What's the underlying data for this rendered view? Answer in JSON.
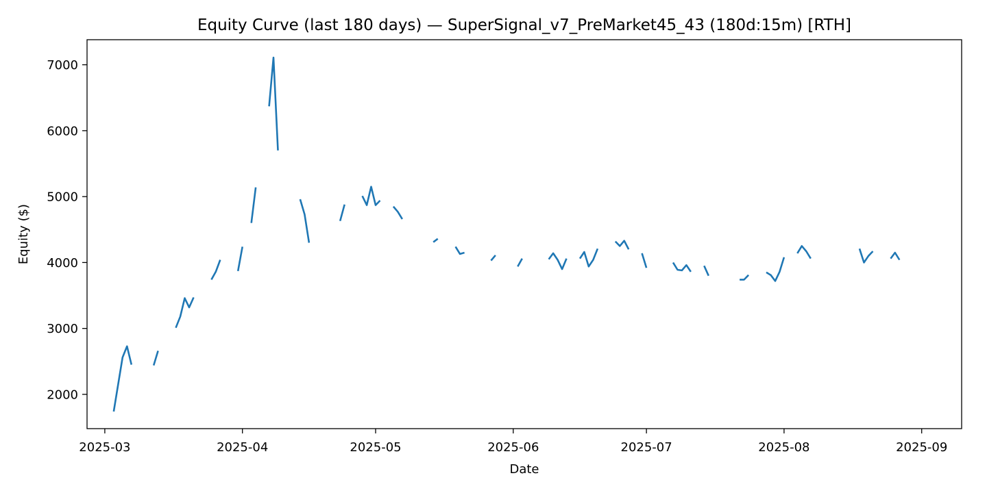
{
  "chart_data": {
    "type": "line",
    "title": "Equity Curve (last 180 days) — SuperSignal_v7_PreMarket45_43 (180d:15m) [RTH]",
    "xlabel": "Date",
    "ylabel": "Equity ($)",
    "x_axis_type": "date",
    "xlim": [
      "2025-02-25",
      "2025-09-10"
    ],
    "ylim": [
      1480,
      7380
    ],
    "xticks": [
      "2025-03-01",
      "2025-04-01",
      "2025-05-01",
      "2025-06-01",
      "2025-07-01",
      "2025-08-01",
      "2025-09-01"
    ],
    "xtick_labels": [
      "2025-03",
      "2025-04",
      "2025-05",
      "2025-06",
      "2025-07",
      "2025-08",
      "2025-09"
    ],
    "yticks": [
      2000,
      3000,
      4000,
      5000,
      6000,
      7000
    ],
    "ytick_labels": [
      "2000",
      "3000",
      "4000",
      "5000",
      "6000",
      "7000"
    ],
    "grid": false,
    "legend": "none",
    "series": [
      {
        "color": "#1f77b4",
        "segments": [
          [
            [
              "2025-03-03",
              1740
            ],
            [
              "2025-03-05",
              2560
            ],
            [
              "2025-03-06",
              2730
            ],
            [
              "2025-03-07",
              2450
            ]
          ],
          [
            [
              "2025-03-12",
              2440
            ],
            [
              "2025-03-13",
              2660
            ]
          ],
          [
            [
              "2025-03-17",
              3010
            ],
            [
              "2025-03-18",
              3180
            ],
            [
              "2025-03-19",
              3460
            ],
            [
              "2025-03-20",
              3320
            ],
            [
              "2025-03-21",
              3470
            ]
          ],
          [
            [
              "2025-03-25",
              3740
            ],
            [
              "2025-03-26",
              3860
            ],
            [
              "2025-03-27",
              4040
            ]
          ],
          [
            [
              "2025-03-31",
              3870
            ],
            [
              "2025-04-01",
              4240
            ]
          ],
          [
            [
              "2025-04-03",
              4600
            ],
            [
              "2025-04-04",
              5140
            ]
          ],
          [
            [
              "2025-04-07",
              6370
            ],
            [
              "2025-04-08",
              7110
            ],
            [
              "2025-04-09",
              5700
            ]
          ],
          [
            [
              "2025-04-14",
              4960
            ],
            [
              "2025-04-15",
              4730
            ],
            [
              "2025-04-16",
              4300
            ]
          ],
          [
            [
              "2025-04-23",
              4630
            ],
            [
              "2025-04-24",
              4880
            ]
          ],
          [
            [
              "2025-04-28",
              5010
            ],
            [
              "2025-04-29",
              4870
            ],
            [
              "2025-04-30",
              5150
            ],
            [
              "2025-05-01",
              4870
            ],
            [
              "2025-05-02",
              4940
            ]
          ],
          [
            [
              "2025-05-05",
              4850
            ],
            [
              "2025-05-06",
              4770
            ],
            [
              "2025-05-07",
              4660
            ]
          ],
          [
            [
              "2025-05-14",
              4310
            ],
            [
              "2025-05-15",
              4360
            ]
          ],
          [
            [
              "2025-05-19",
              4240
            ],
            [
              "2025-05-20",
              4130
            ],
            [
              "2025-05-21",
              4150
            ]
          ],
          [
            [
              "2025-05-27",
              4030
            ],
            [
              "2025-05-28",
              4110
            ]
          ],
          [
            [
              "2025-06-02",
              3940
            ],
            [
              "2025-06-03",
              4060
            ]
          ],
          [
            [
              "2025-06-09",
              4050
            ],
            [
              "2025-06-10",
              4140
            ],
            [
              "2025-06-11",
              4040
            ],
            [
              "2025-06-12",
              3900
            ],
            [
              "2025-06-13",
              4060
            ]
          ],
          [
            [
              "2025-06-16",
              4060
            ],
            [
              "2025-06-17",
              4160
            ],
            [
              "2025-06-18",
              3940
            ],
            [
              "2025-06-19",
              4040
            ],
            [
              "2025-06-20",
              4210
            ]
          ],
          [
            [
              "2025-06-24",
              4320
            ],
            [
              "2025-06-25",
              4250
            ],
            [
              "2025-06-26",
              4330
            ],
            [
              "2025-06-27",
              4200
            ]
          ],
          [
            [
              "2025-06-30",
              4140
            ],
            [
              "2025-07-01",
              3920
            ]
          ],
          [
            [
              "2025-07-07",
              4000
            ],
            [
              "2025-07-08",
              3890
            ],
            [
              "2025-07-09",
              3880
            ],
            [
              "2025-07-10",
              3960
            ],
            [
              "2025-07-11",
              3860
            ]
          ],
          [
            [
              "2025-07-14",
              3950
            ],
            [
              "2025-07-15",
              3800
            ]
          ],
          [
            [
              "2025-07-22",
              3740
            ],
            [
              "2025-07-23",
              3740
            ],
            [
              "2025-07-24",
              3810
            ]
          ],
          [
            [
              "2025-07-28",
              3850
            ],
            [
              "2025-07-29",
              3810
            ],
            [
              "2025-07-30",
              3720
            ],
            [
              "2025-07-31",
              3860
            ],
            [
              "2025-08-01",
              4080
            ]
          ],
          [
            [
              "2025-08-04",
              4140
            ],
            [
              "2025-08-05",
              4250
            ],
            [
              "2025-08-06",
              4170
            ],
            [
              "2025-08-07",
              4060
            ]
          ],
          [
            [
              "2025-08-18",
              4210
            ],
            [
              "2025-08-19",
              4000
            ],
            [
              "2025-08-20",
              4100
            ],
            [
              "2025-08-21",
              4170
            ]
          ],
          [
            [
              "2025-08-25",
              4060
            ],
            [
              "2025-08-26",
              4150
            ],
            [
              "2025-08-27",
              4040
            ]
          ]
        ]
      }
    ]
  }
}
